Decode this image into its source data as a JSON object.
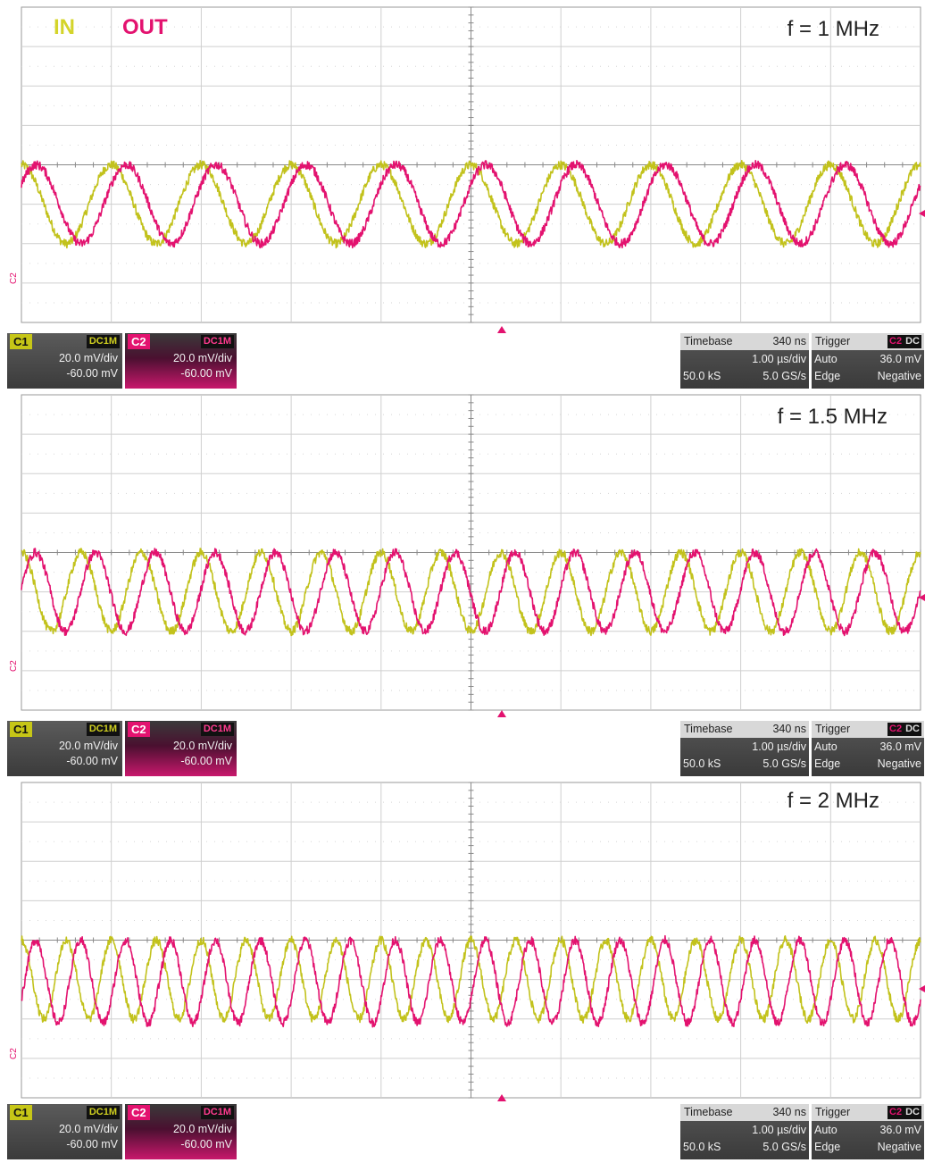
{
  "legend": {
    "in_label": "IN",
    "out_label": "OUT"
  },
  "colors": {
    "in": "#c2c21c",
    "out": "#e3126f",
    "grid": "#cfcfcf",
    "frame": "#9a9a9a"
  },
  "panels": [
    {
      "freq_label": "f = 1 MHz",
      "marker_label": "C2",
      "ch1": {
        "name": "C1",
        "coupling": "DC1M",
        "scale": "20.0 mV/div",
        "offset": "-60.00 mV"
      },
      "ch2": {
        "name": "C2",
        "coupling": "DC1M",
        "scale": "20.0 mV/div",
        "offset": "-60.00 mV"
      },
      "timebase": {
        "title": "Timebase",
        "delay": "340 ns",
        "per_div": "1.00 µs/div",
        "samples": "50.0 kS",
        "rate": "5.0 GS/s"
      },
      "trigger": {
        "title": "Trigger",
        "source": "C2",
        "coupling": "DC",
        "mode": "Auto",
        "level": "36.0 mV",
        "type": "Edge",
        "slope": "Negative"
      }
    },
    {
      "freq_label": "f = 1.5 MHz",
      "marker_label": "C2",
      "ch1": {
        "name": "C1",
        "coupling": "DC1M",
        "scale": "20.0 mV/div",
        "offset": "-60.00 mV"
      },
      "ch2": {
        "name": "C2",
        "coupling": "DC1M",
        "scale": "20.0 mV/div",
        "offset": "-60.00 mV"
      },
      "timebase": {
        "title": "Timebase",
        "delay": "340 ns",
        "per_div": "1.00 µs/div",
        "samples": "50.0 kS",
        "rate": "5.0 GS/s"
      },
      "trigger": {
        "title": "Trigger",
        "source": "C2",
        "coupling": "DC",
        "mode": "Auto",
        "level": "36.0 mV",
        "type": "Edge",
        "slope": "Negative"
      }
    },
    {
      "freq_label": "f = 2 MHz",
      "marker_label": "C2",
      "ch1": {
        "name": "C1",
        "coupling": "DC1M",
        "scale": "20.0 mV/div",
        "offset": "-60.00 mV"
      },
      "ch2": {
        "name": "C2",
        "coupling": "DC1M",
        "scale": "20.0 mV/div",
        "offset": "-60.00 mV"
      },
      "timebase": {
        "title": "Timebase",
        "delay": "340 ns",
        "per_div": "1.00 µs/div",
        "samples": "50.0 kS",
        "rate": "5.0 GS/s"
      },
      "trigger": {
        "title": "Trigger",
        "source": "C2",
        "coupling": "DC",
        "mode": "Auto",
        "level": "36.0 mV",
        "type": "Edge",
        "slope": "Negative"
      }
    }
  ],
  "chart_data": [
    {
      "type": "line",
      "x_unit": "µs",
      "y_unit": "div",
      "xlim": [
        0,
        10
      ],
      "ylim": [
        -4,
        4
      ],
      "frequency_mhz": 1,
      "series": [
        {
          "name": "IN",
          "amplitude_div": 1.0,
          "offset_div": -1.0,
          "phase_deg": 0
        },
        {
          "name": "OUT",
          "amplitude_div": 1.0,
          "offset_div": -1.0,
          "phase_deg": -60
        }
      ]
    },
    {
      "type": "line",
      "x_unit": "µs",
      "y_unit": "div",
      "xlim": [
        0,
        10
      ],
      "ylim": [
        -4,
        4
      ],
      "frequency_mhz": 1.5,
      "series": [
        {
          "name": "IN",
          "amplitude_div": 1.0,
          "offset_div": -1.0,
          "phase_deg": 0
        },
        {
          "name": "OUT",
          "amplitude_div": 1.0,
          "offset_div": -1.0,
          "phase_deg": -85
        }
      ]
    },
    {
      "type": "line",
      "x_unit": "µs",
      "y_unit": "div",
      "xlim": [
        0,
        10
      ],
      "ylim": [
        -4,
        4
      ],
      "frequency_mhz": 2,
      "series": [
        {
          "name": "IN",
          "amplitude_div": 1.0,
          "offset_div": -1.0,
          "phase_deg": 0
        },
        {
          "name": "OUT",
          "amplitude_div": 1.05,
          "offset_div": -1.05,
          "phase_deg": -115
        }
      ]
    }
  ]
}
